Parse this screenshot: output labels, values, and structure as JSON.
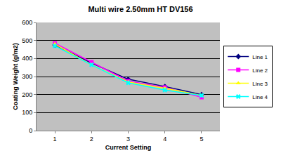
{
  "chart_data": {
    "type": "line",
    "title": "Multi wire 2.50mm HT DV156",
    "x_label": "Current Setting",
    "y_label": "Coating Weight (g/m2)",
    "categories": [
      "1",
      "2",
      "3",
      "4",
      "5"
    ],
    "series": [
      {
        "name": "Line 1",
        "color": "#000080",
        "marker": "diamond",
        "values": [
          475,
          375,
          285,
          245,
          200
        ]
      },
      {
        "name": "Line 2",
        "color": "#ff00ff",
        "marker": "square",
        "values": [
          485,
          380,
          275,
          240,
          185
        ]
      },
      {
        "name": "Line 3",
        "color": "#ffff00",
        "marker": "triangle-up",
        "values": [
          480,
          365,
          270,
          235,
          195
        ]
      },
      {
        "name": "Line 4",
        "color": "#00ffff",
        "marker": "x",
        "values": [
          470,
          365,
          265,
          225,
          195
        ]
      }
    ],
    "ylim": [
      0,
      600
    ],
    "yticks": [
      0,
      100,
      200,
      300,
      400,
      500,
      600
    ],
    "grid": true,
    "legend": "right"
  }
}
